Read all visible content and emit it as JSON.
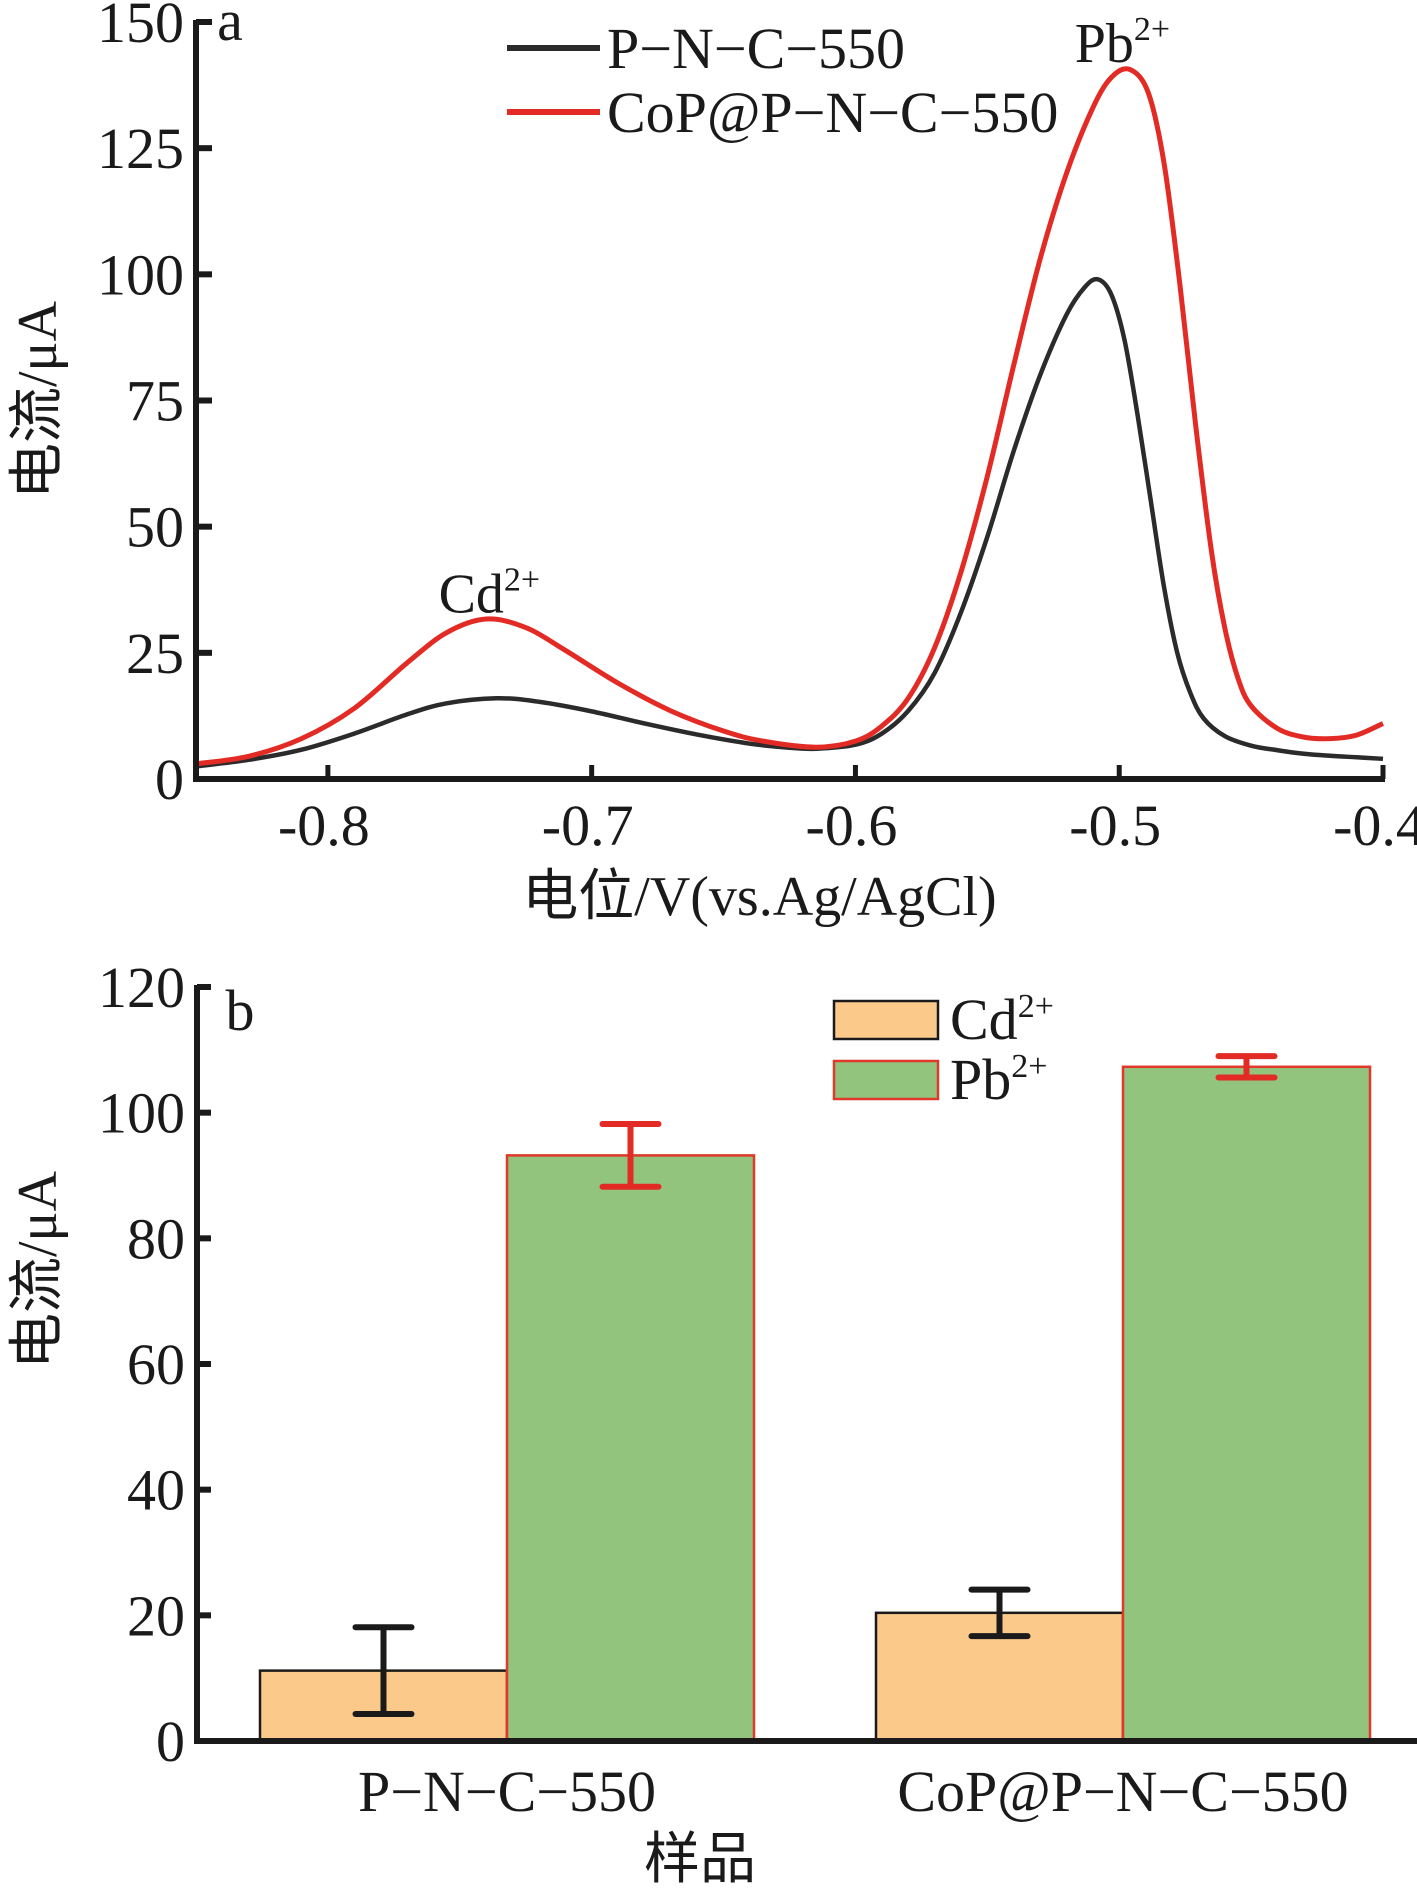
{
  "chart_data": [
    {
      "panel": "a",
      "type": "line",
      "title": "",
      "xlabel": "电位/V(vs.Ag/AgCl)",
      "ylabel": "电流/μA",
      "xlim": [
        -0.85,
        -0.4
      ],
      "ylim": [
        0,
        150
      ],
      "xticks": [
        -0.8,
        -0.7,
        -0.6,
        -0.5,
        -0.4
      ],
      "xtick_labels": [
        "-0.8",
        "-0.7",
        "-0.6",
        "-0.5",
        "-0.4"
      ],
      "yticks": [
        0,
        25,
        50,
        75,
        100,
        125,
        150
      ],
      "ytick_labels": [
        "0",
        "25",
        "50",
        "75",
        "100",
        "125",
        "150"
      ],
      "grid": false,
      "legend_position": "top-center",
      "series": [
        {
          "name": "P−N−C−550",
          "color": "#2b2b2b",
          "x": [
            -0.85,
            -0.83,
            -0.81,
            -0.79,
            -0.77,
            -0.755,
            -0.736,
            -0.72,
            -0.7,
            -0.68,
            -0.66,
            -0.64,
            -0.625,
            -0.615,
            -0.6,
            -0.59,
            -0.58,
            -0.57,
            -0.56,
            -0.55,
            -0.54,
            -0.53,
            -0.52,
            -0.513,
            -0.508,
            -0.503,
            -0.498,
            -0.493,
            -0.488,
            -0.483,
            -0.478,
            -0.473,
            -0.468,
            -0.46,
            -0.45,
            -0.44,
            -0.43,
            -0.42,
            -0.41,
            -0.4
          ],
          "y": [
            2.5,
            3.8,
            5.8,
            9.0,
            12.8,
            15.0,
            16.0,
            15.3,
            13.4,
            11.0,
            8.8,
            7.0,
            6.2,
            6.0,
            6.8,
            9.0,
            13.5,
            21.0,
            33.0,
            48.0,
            65.0,
            80.0,
            92.0,
            97.5,
            99.0,
            96.0,
            87.0,
            72.0,
            55.0,
            38.0,
            25.0,
            17.0,
            12.0,
            8.5,
            6.6,
            5.7,
            5.0,
            4.6,
            4.3,
            4.0
          ]
        },
        {
          "name": "CoP@P−N−C−550",
          "color": "#e32b25",
          "x": [
            -0.85,
            -0.83,
            -0.81,
            -0.79,
            -0.77,
            -0.755,
            -0.74,
            -0.725,
            -0.71,
            -0.69,
            -0.67,
            -0.65,
            -0.635,
            -0.615,
            -0.6,
            -0.59,
            -0.58,
            -0.57,
            -0.56,
            -0.55,
            -0.54,
            -0.53,
            -0.52,
            -0.51,
            -0.503,
            -0.496,
            -0.489,
            -0.483,
            -0.477,
            -0.471,
            -0.465,
            -0.46,
            -0.455,
            -0.45,
            -0.44,
            -0.43,
            -0.42,
            -0.41,
            -0.4
          ],
          "y": [
            3.0,
            4.5,
            8.0,
            14.0,
            23.0,
            29.0,
            31.7,
            30.0,
            25.5,
            19.0,
            13.5,
            9.5,
            7.5,
            6.3,
            7.5,
            10.5,
            16.0,
            26.0,
            41.0,
            60.0,
            82.0,
            103.0,
            120.0,
            133.0,
            139.0,
            140.6,
            136.0,
            122.0,
            98.0,
            70.0,
            45.0,
            30.0,
            20.0,
            14.5,
            10.0,
            8.3,
            8.0,
            8.7,
            11.0
          ]
        }
      ],
      "annotations": [
        {
          "text": "Cd",
          "superscript": "2+",
          "near_x": -0.735,
          "near_y": 37
        },
        {
          "text": "Pb",
          "superscript": "2+",
          "near_x": -0.495,
          "near_y": 146
        }
      ]
    },
    {
      "panel": "b",
      "type": "bar",
      "title": "",
      "xlabel": "样品",
      "ylabel": "电流/μA",
      "ylim": [
        0,
        120
      ],
      "yticks": [
        0,
        20,
        40,
        60,
        80,
        100,
        120
      ],
      "ytick_labels": [
        "0",
        "20",
        "40",
        "60",
        "80",
        "100",
        "120"
      ],
      "categories": [
        "P−N−C−550",
        "CoP@P−N−C−550"
      ],
      "grid": false,
      "legend_position": "top-right",
      "series": [
        {
          "name": "Cd",
          "superscript": "2+",
          "fill": "#fbc98a",
          "edge": "#1a1a1a",
          "error_color": "#1a1a1a",
          "values": [
            11.2,
            20.4
          ],
          "errors": [
            6.9,
            3.7
          ]
        },
        {
          "name": "Pb",
          "superscript": "2+",
          "fill": "#92c47d",
          "edge": "#e0392b",
          "error_color": "#e32b25",
          "values": [
            93.2,
            107.3
          ],
          "errors": [
            5.0,
            1.7
          ]
        }
      ]
    }
  ]
}
